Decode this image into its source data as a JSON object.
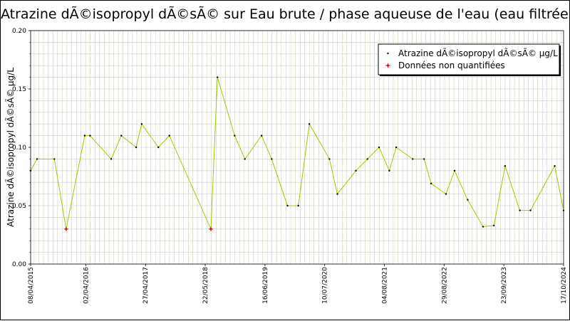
{
  "title": "Atrazine dÃ©isopropyl dÃ©sÃ© sur Eau brute / phase aqueuse de l'eau (eau filtrée)",
  "colors": {
    "line": "#99cc00",
    "marker": "#000000",
    "non_quantified": "#ff0000",
    "grid_minor": "#999966",
    "grid_major": "#cccccc",
    "plot_border": "#000000"
  },
  "legend": {
    "placement": "top-right",
    "entries": [
      {
        "label": "Atrazine dÃ©isopropyl dÃ©sÃ© µg/L",
        "marker_color": "#000000",
        "line_color": "#99cc00"
      },
      {
        "label": "Données non quantifiées",
        "marker_color": "#ff0000",
        "line_color": "#ff0000"
      }
    ]
  },
  "chart_data": {
    "type": "line",
    "title": "Atrazine dÃ©isopropyl dÃ©sÃ© sur Eau brute / phase aqueuse de l'eau (eau filtrée)",
    "xlabel": "",
    "ylabel": "Atrazine dÃ©isopropyl dÃ©sÃ© µg/L",
    "xlim": [
      "2015-04-08",
      "2024-10-17"
    ],
    "ylim": [
      0,
      0.2
    ],
    "yticks": [
      0.0,
      0.05,
      0.1,
      0.15,
      0.2
    ],
    "ytick_labels": [
      "0.00",
      "0.05",
      "0.10",
      "0.15",
      "0.20"
    ],
    "xticks": [
      "2015-04-08",
      "2016-04-02",
      "2017-04-27",
      "2018-05-22",
      "2019-06-16",
      "2020-07-10",
      "2021-08-04",
      "2022-08-29",
      "2023-09-23",
      "2024-10-17"
    ],
    "xtick_labels": [
      "08/04/2015",
      "02/04/2016",
      "27/04/2017",
      "22/05/2018",
      "16/06/2019",
      "10/07/2020",
      "04/08/2021",
      "29/08/2022",
      "23/09/2023",
      "17/10/2024"
    ],
    "grid": true,
    "legend_placement": "top-right",
    "series": [
      {
        "name": "Atrazine dÃ©isopropyl dÃ©sÃ© µg/L",
        "x": [
          "2015-04-08",
          "2015-05-20",
          "2015-09-10",
          "2015-11-26",
          "2016-03-26",
          "2016-04-30",
          "2016-09-15",
          "2016-11-20",
          "2017-02-25",
          "2017-04-02",
          "2017-07-20",
          "2017-09-30",
          "2018-06-28",
          "2018-08-10",
          "2018-11-30",
          "2019-02-05",
          "2019-05-25",
          "2019-07-30",
          "2019-11-10",
          "2020-01-20",
          "2020-04-01",
          "2020-08-10",
          "2020-10-01",
          "2021-01-30",
          "2021-04-15",
          "2021-06-30",
          "2021-09-05",
          "2021-10-20",
          "2022-02-05",
          "2022-04-20",
          "2022-06-05",
          "2022-09-10",
          "2022-11-05",
          "2023-01-30",
          "2023-05-10",
          "2023-07-20",
          "2023-10-01",
          "2024-01-05",
          "2024-03-15",
          "2024-08-20",
          "2024-10-17"
        ],
        "y": [
          0.08,
          0.09,
          0.09,
          0.03,
          0.11,
          0.11,
          0.09,
          0.11,
          0.1,
          0.12,
          0.1,
          0.11,
          0.03,
          0.16,
          0.11,
          0.09,
          0.11,
          0.09,
          0.05,
          0.05,
          0.12,
          0.09,
          0.06,
          0.08,
          0.09,
          0.1,
          0.08,
          0.1,
          0.09,
          0.09,
          0.069,
          0.06,
          0.08,
          0.055,
          0.032,
          0.033,
          0.084,
          0.046,
          0.046,
          0.084,
          0.046
        ],
        "non_quantified": [
          false,
          false,
          false,
          true,
          false,
          false,
          false,
          false,
          false,
          false,
          false,
          false,
          true,
          false,
          false,
          false,
          false,
          false,
          false,
          false,
          false,
          false,
          false,
          false,
          false,
          false,
          false,
          false,
          false,
          false,
          false,
          false,
          false,
          false,
          false,
          false,
          false,
          false,
          false,
          false,
          false
        ]
      }
    ]
  }
}
